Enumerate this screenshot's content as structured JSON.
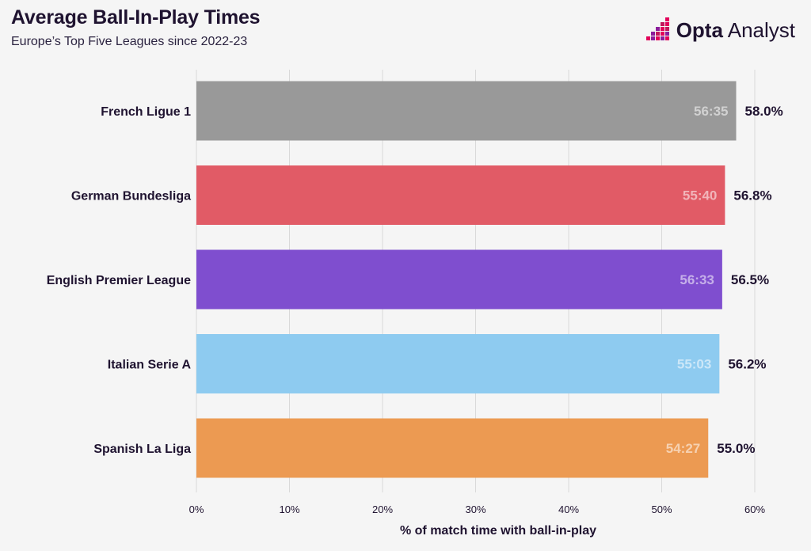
{
  "header": {
    "title": "Average Ball-In-Play Times",
    "subtitle": "Europe’s Top Five Leagues since 2022-23"
  },
  "brand": {
    "bold": "Opta",
    "light": " Analyst",
    "icon": "opta-pixel-icon",
    "colors": [
      "#e2005a",
      "#8b1d9b",
      "#c2185b"
    ]
  },
  "chart_data": {
    "type": "bar",
    "orientation": "horizontal",
    "title": "Average Ball-In-Play Times",
    "subtitle": "Europe’s Top Five Leagues since 2022-23",
    "xlabel": "% of match time with ball-in-play",
    "ylabel": "",
    "xlim": [
      0,
      60
    ],
    "xticks": [
      0,
      10,
      20,
      30,
      40,
      50,
      60
    ],
    "xtick_labels": [
      "0%",
      "10%",
      "20%",
      "30%",
      "40%",
      "50%",
      "60%"
    ],
    "grid": "vertical",
    "legend": "none",
    "categories": [
      "French Ligue 1",
      "German Bundesliga",
      "English Premier League",
      "Italian Serie A",
      "Spanish La Liga"
    ],
    "values": [
      58.0,
      56.8,
      56.5,
      56.2,
      55.0
    ],
    "value_labels": [
      "58.0%",
      "56.8%",
      "56.5%",
      "56.2%",
      "55.0%"
    ],
    "time_labels": [
      "56:35",
      "55:40",
      "56:33",
      "55:03",
      "54:27"
    ],
    "colors": [
      "#999999",
      "#e15b66",
      "#7f4ecf",
      "#8ecbf0",
      "#ec9a52"
    ]
  }
}
